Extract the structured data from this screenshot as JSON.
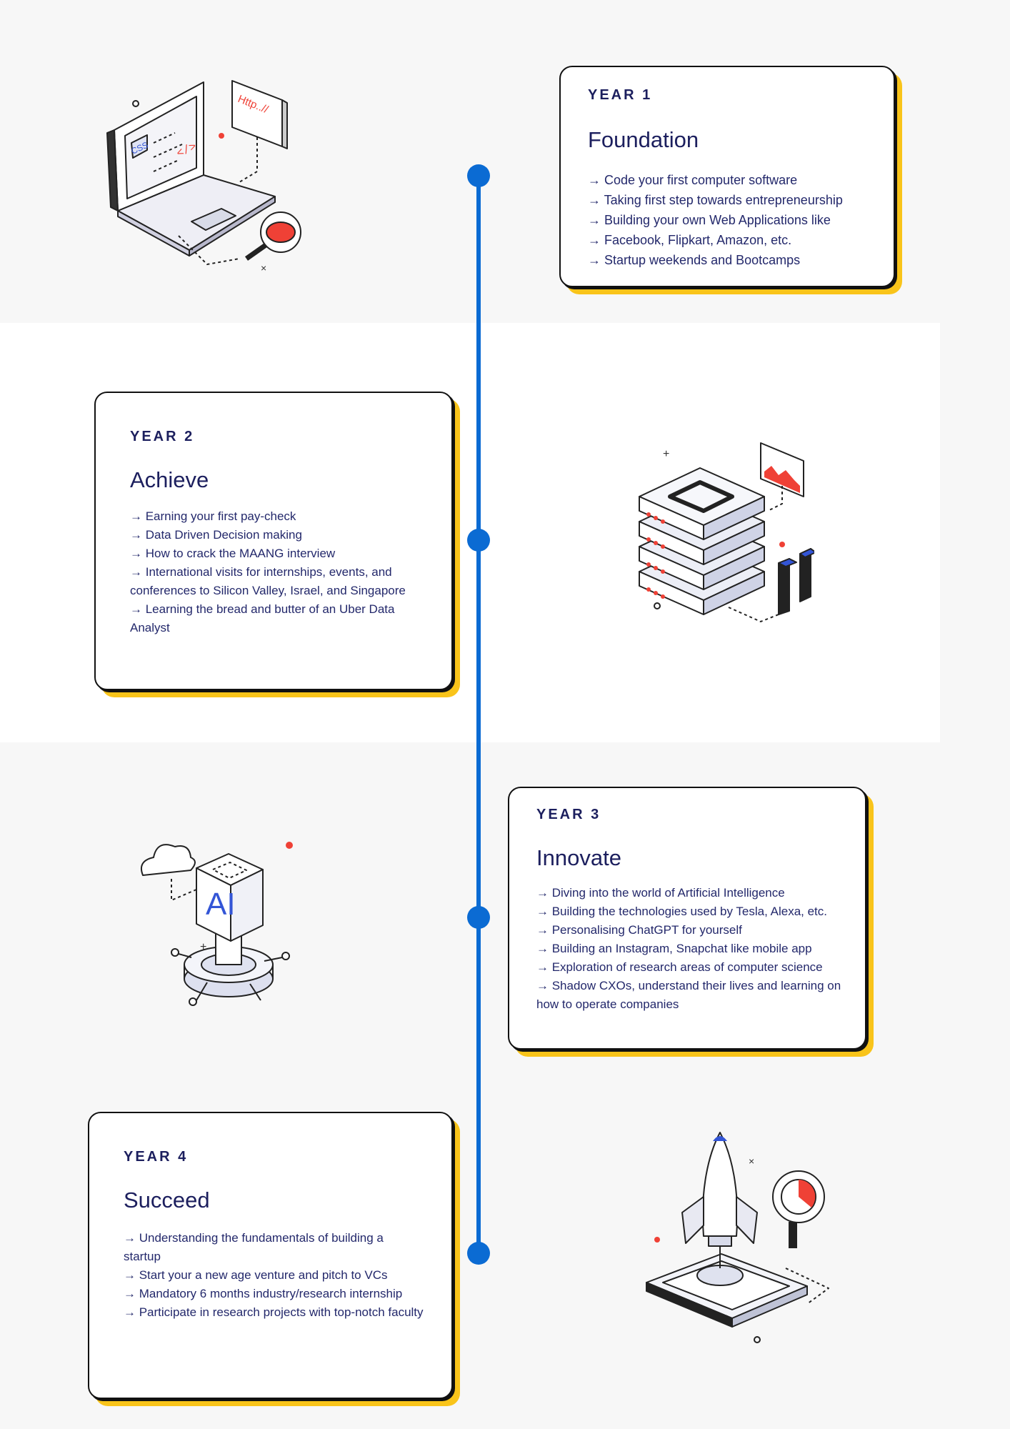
{
  "timeline": [
    {
      "year": "YEAR 1",
      "title": "Foundation",
      "points": [
        "→ Code your first computer software",
        "→ Taking first step towards entrepreneurship",
        "→ Building your own Web Applications like",
        "→ Facebook, Flipkart, Amazon, etc.",
        "→ Startup weekends and Bootcamps"
      ],
      "illustration": "laptop-code-illustration"
    },
    {
      "year": "YEAR 2",
      "title": "Achieve",
      "points": [
        "→ Earning your first pay-check",
        "→ Data Driven Decision making",
        "→ How to crack the MAANG interview",
        "→ International visits for internships, events, and conferences to Silicon Valley, Israel, and Singapore",
        "→ Learning the bread and butter of an Uber Data Analyst"
      ],
      "illustration": "server-stack-illustration"
    },
    {
      "year": "YEAR 3",
      "title": "Innovate",
      "points": [
        "→ Diving into the world of Artificial Intelligence",
        "→ Building the technologies used by Tesla, Alexa, etc.",
        "→ Personalising ChatGPT for yourself",
        "→ Building an Instagram, Snapchat like mobile app",
        "→ Exploration of research areas of computer science",
        "→ Shadow CXOs, understand their lives and learning on how to operate companies"
      ],
      "illustration": "ai-cube-illustration"
    },
    {
      "year": "YEAR 4",
      "title": "Succeed",
      "points": [
        "→ Understanding the fundamentals of building a startup",
        "→ Start your a new age venture and pitch to VCs",
        "→ Mandatory 6 months industry/research internship",
        "→ Participate in research projects with top-notch faculty"
      ],
      "illustration": "rocket-launch-illustration"
    }
  ],
  "illustration_labels": {
    "css": "CSS",
    "code": "</>",
    "http": "Http..//",
    "ai": "AI"
  },
  "colors": {
    "timeline": "#0b6bd3",
    "card_accent": "#f9c41a",
    "text": "#1c1f5e",
    "illustration_red": "#ef4136",
    "illustration_blue": "#3355d6"
  }
}
